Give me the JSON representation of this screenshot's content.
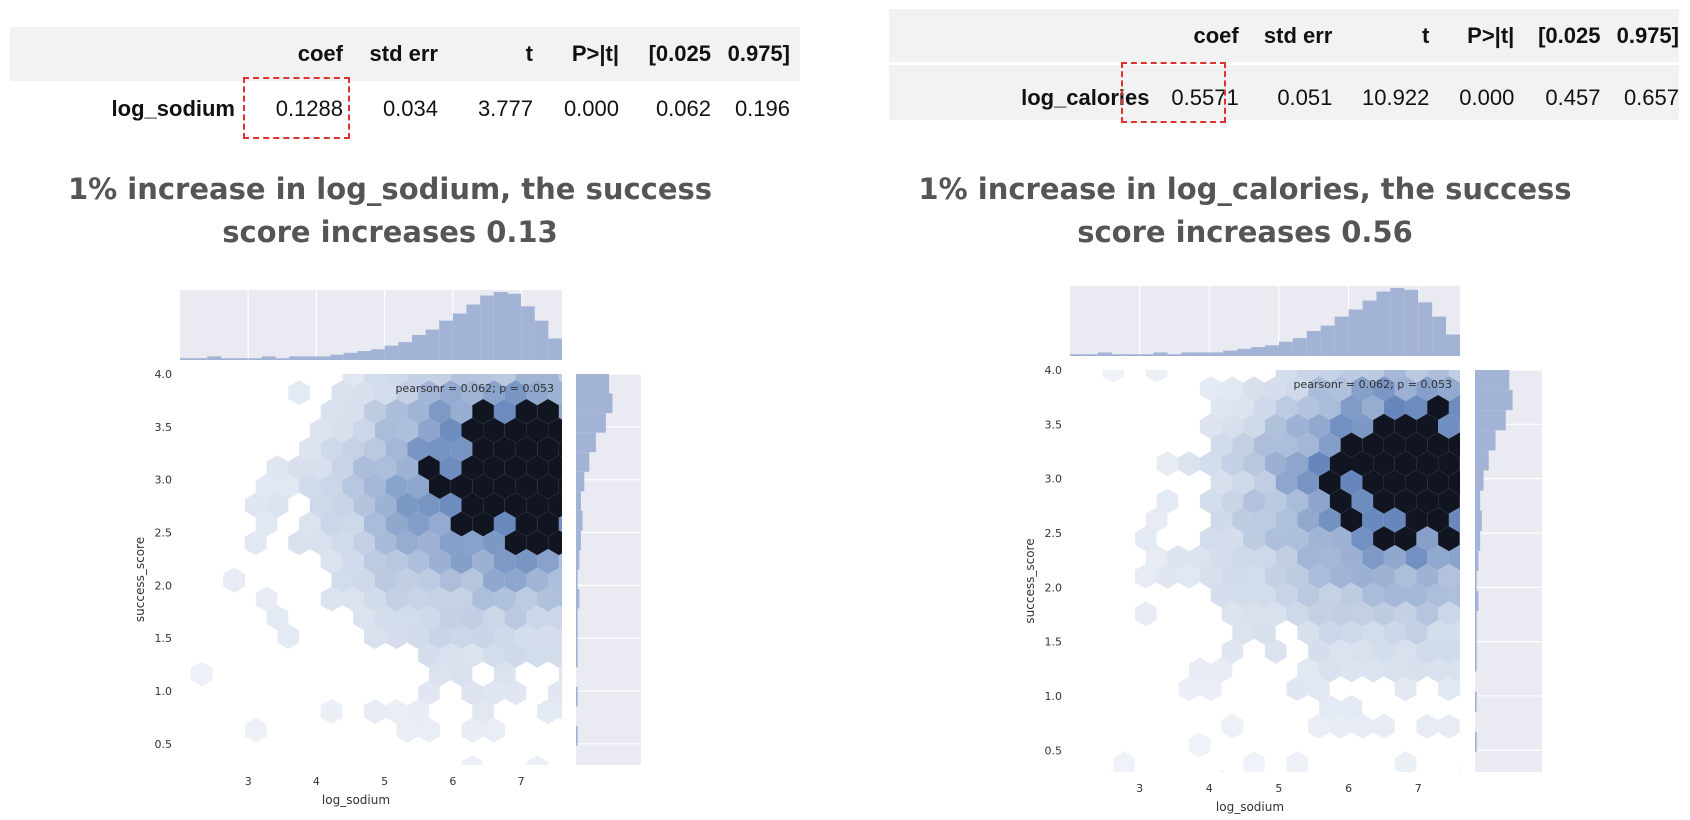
{
  "tables": [
    {
      "headers": [
        "coef",
        "std err",
        "t",
        "P>|t|",
        "[0.025",
        "0.975]"
      ],
      "row_label": "log_sodium",
      "values": [
        "0.1288",
        "0.034",
        "3.777",
        "0.000",
        "0.062",
        "0.196"
      ]
    },
    {
      "headers": [
        "coef",
        "std err",
        "t",
        "P>|t|",
        "[0.025",
        "0.975]"
      ],
      "row_label": "log_calories",
      "values": [
        "0.5571",
        "0.051",
        "10.922",
        "0.000",
        "0.457",
        "0.657"
      ]
    }
  ],
  "captions": [
    {
      "line1": "1% increase in log_sodium, the success",
      "line2": "score increases 0.13"
    },
    {
      "line1": "1% increase in log_calories, the success",
      "line2": "score increases 0.56"
    }
  ],
  "colors": {
    "highlight_box": "#e0322d",
    "hex_base": "#4c72b0",
    "marginal_fill": "#a3b3d6",
    "panel_bg": "#eaeaf2",
    "caption_text": "#555555"
  },
  "chart_data": [
    {
      "type": "hexbin",
      "xlabel": "log_sodium",
      "ylabel": "success_score",
      "xlim": [
        2.0,
        7.6
      ],
      "ylim": [
        0.3,
        4.0
      ],
      "xticks": [
        3,
        4,
        5,
        6,
        7
      ],
      "yticks": [
        0.5,
        1.0,
        1.5,
        2.0,
        2.5,
        3.0,
        3.5,
        4.0
      ],
      "annotation": "pearsonr = 0.062; p = 0.053",
      "marginal_x": {
        "bin_edges_start": 2.0,
        "bin_width": 0.2,
        "counts": [
          1,
          1,
          2,
          1,
          1,
          1,
          2,
          1,
          2,
          2,
          2,
          3,
          4,
          5,
          6,
          8,
          10,
          14,
          17,
          22,
          26,
          31,
          36,
          38,
          37,
          30,
          22,
          12
        ]
      },
      "marginal_y": {
        "bin_edges_start": 0.3,
        "bin_width": 0.185,
        "counts": [
          0,
          1,
          0,
          1,
          0,
          1,
          1,
          1,
          2,
          1,
          2,
          3,
          4,
          3,
          5,
          8,
          12,
          18,
          22,
          20,
          34,
          38,
          28,
          14,
          12,
          20,
          10,
          16
        ]
      }
    },
    {
      "type": "hexbin",
      "xlabel": "log_sodium",
      "ylabel": "success_score",
      "xlim": [
        2.0,
        7.6
      ],
      "ylim": [
        0.3,
        4.0
      ],
      "xticks": [
        3,
        4,
        5,
        6,
        7
      ],
      "yticks": [
        0.5,
        1.0,
        1.5,
        2.0,
        2.5,
        3.0,
        3.5,
        4.0
      ],
      "annotation": "pearsonr = 0.062; p = 0.053",
      "marginal_x": {
        "bin_edges_start": 2.0,
        "bin_width": 0.2,
        "counts": [
          1,
          1,
          2,
          1,
          1,
          1,
          2,
          1,
          2,
          2,
          2,
          3,
          4,
          5,
          6,
          8,
          10,
          14,
          17,
          22,
          26,
          31,
          36,
          38,
          37,
          30,
          22,
          12
        ]
      },
      "marginal_y": {
        "bin_edges_start": 0.3,
        "bin_width": 0.185,
        "counts": [
          0,
          1,
          0,
          1,
          0,
          1,
          1,
          1,
          2,
          1,
          2,
          3,
          4,
          3,
          5,
          8,
          12,
          18,
          22,
          20,
          34,
          38,
          28,
          14,
          12,
          20,
          10,
          16
        ]
      }
    }
  ]
}
